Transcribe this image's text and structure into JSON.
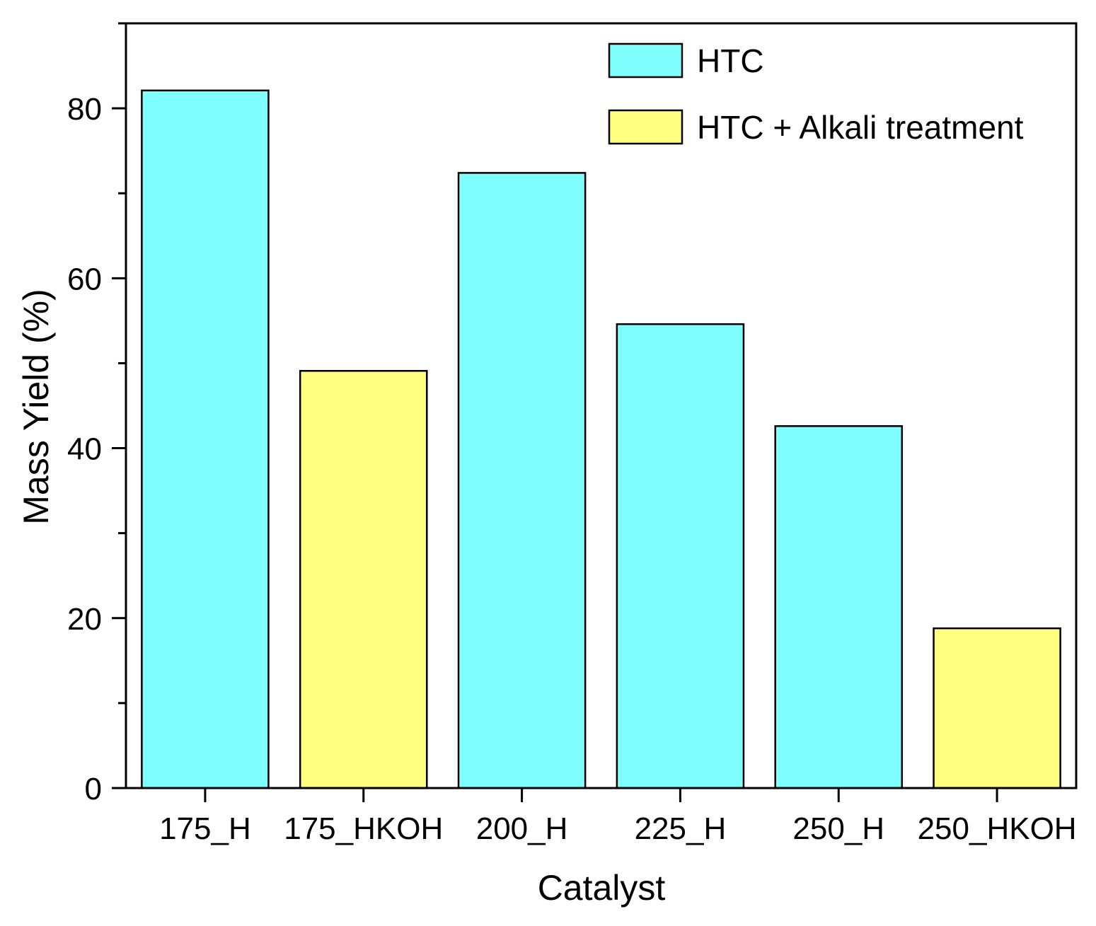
{
  "chart_data": {
    "type": "bar",
    "title": "",
    "xlabel": "Catalyst",
    "ylabel": "Mass Yield (%)",
    "ylim": [
      0,
      90
    ],
    "yticks": [
      0,
      20,
      40,
      60,
      80
    ],
    "yminor_step": 10,
    "grid": false,
    "legend_position": "top-right",
    "categories": [
      "175_H",
      "175_HKOH",
      "200_H",
      "225_H",
      "250_H",
      "250_HKOH"
    ],
    "values": [
      82.1,
      49.1,
      72.4,
      54.6,
      42.6,
      18.8
    ],
    "bar_series": [
      "HTC",
      "HTC + Alkali treatment",
      "HTC",
      "HTC",
      "HTC",
      "HTC + Alkali treatment"
    ],
    "series": [
      {
        "name": "HTC",
        "color": "#80FFFF"
      },
      {
        "name": "HTC + Alkali treatment",
        "color": "#FFFF80"
      }
    ]
  }
}
